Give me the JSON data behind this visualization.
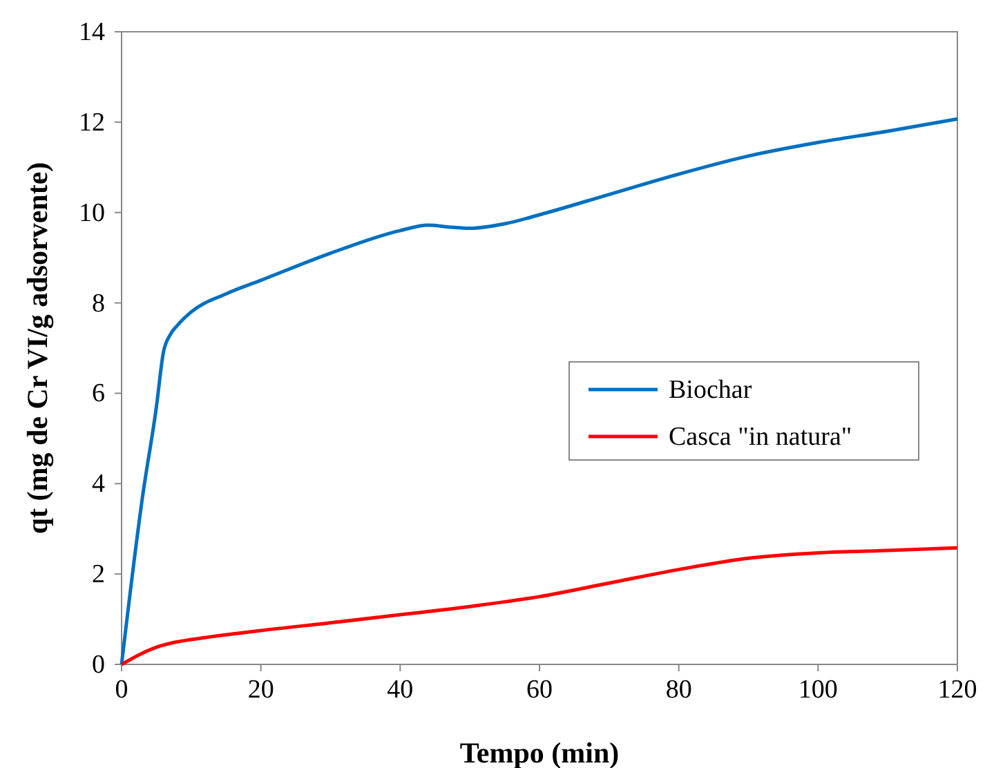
{
  "chart_data": {
    "type": "line",
    "xlabel": "Tempo (min)",
    "ylabel": "qt (mg de Cr VI/g adsorvente)",
    "xlim": [
      0,
      120
    ],
    "xticks": [
      0,
      20,
      40,
      60,
      80,
      100,
      120
    ],
    "ylim": [
      0,
      14
    ],
    "yticks": [
      0,
      2,
      4,
      6,
      8,
      10,
      12,
      14
    ],
    "grid": false,
    "legend": "right",
    "marker": "none",
    "line_style": "solid",
    "series": [
      {
        "name": "Biochar",
        "color": "#0070c0",
        "x": [
          0,
          3,
          5,
          6,
          7,
          8,
          10,
          15,
          20,
          30,
          40,
          44,
          47,
          50,
          55,
          60,
          70,
          80,
          90,
          100,
          110,
          120
        ],
        "values": [
          0,
          3.7,
          5.7,
          6.9,
          7.3,
          7.5,
          7.8,
          8.2,
          8.5,
          9.1,
          9.6,
          9.72,
          9.68,
          9.65,
          9.75,
          9.95,
          10.4,
          10.85,
          11.25,
          11.55,
          11.8,
          12.07
        ]
      },
      {
        "name": "Casca \"in natura\"",
        "color": "#ff0000",
        "x": [
          0,
          3,
          5,
          8,
          10,
          20,
          30,
          40,
          50,
          60,
          70,
          80,
          90,
          100,
          110,
          120
        ],
        "values": [
          0,
          0.25,
          0.38,
          0.5,
          0.55,
          0.75,
          0.92,
          1.1,
          1.28,
          1.5,
          1.8,
          2.1,
          2.35,
          2.47,
          2.52,
          2.58
        ]
      }
    ]
  }
}
